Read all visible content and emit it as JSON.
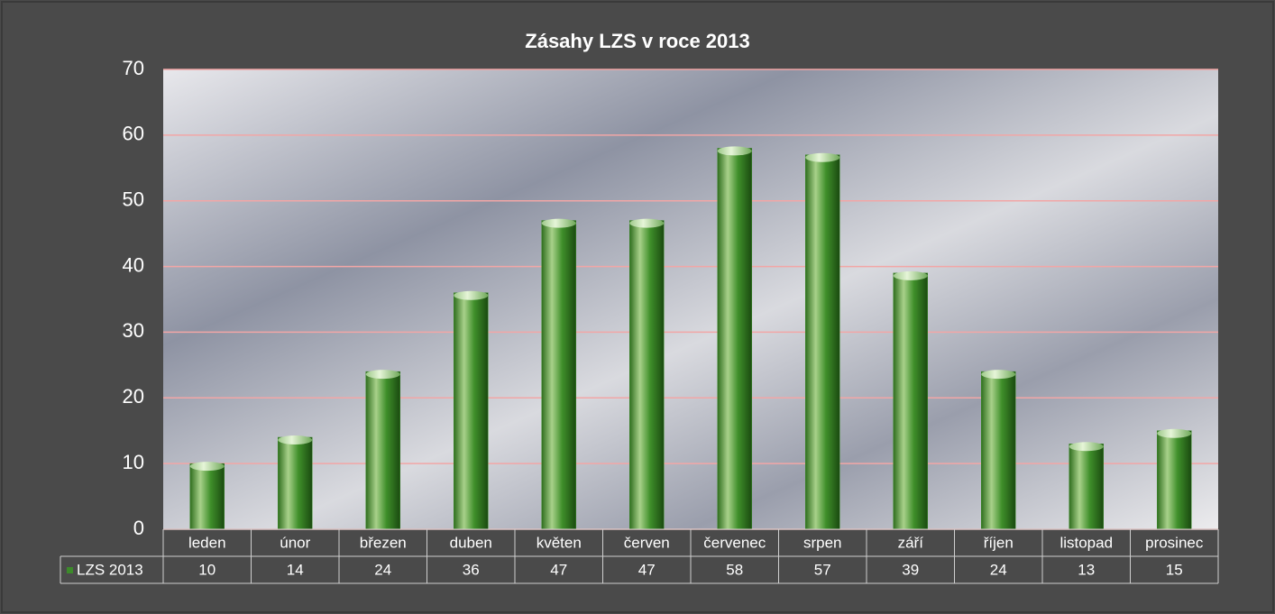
{
  "chart_data": {
    "type": "bar",
    "title": "Zásahy LZS v roce 2013",
    "categories": [
      "leden",
      "únor",
      "březen",
      "duben",
      "květen",
      "červen",
      "červenec",
      "srpen",
      "září",
      "říjen",
      "listopad",
      "prosinec"
    ],
    "series": [
      {
        "name": "LZS 2013",
        "color": "#3c8a2a",
        "values": [
          10,
          14,
          24,
          36,
          47,
          47,
          58,
          57,
          39,
          24,
          13,
          15
        ]
      }
    ],
    "ylim": [
      0,
      70
    ],
    "yticks": [
      0,
      10,
      20,
      30,
      40,
      50,
      60,
      70
    ],
    "grid": true,
    "grid_color": "#f2a6a6",
    "legend": "data-table"
  }
}
